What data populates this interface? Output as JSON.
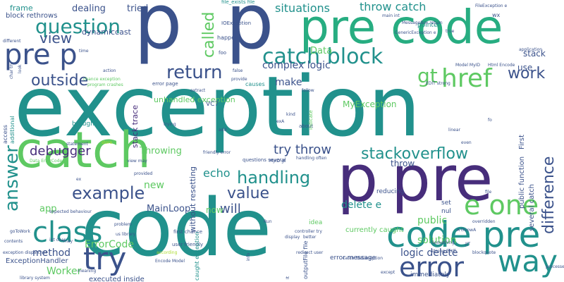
{
  "palette": {
    "navy": "#3b528b",
    "teal": "#21918c",
    "green": "#5ec962",
    "purple": "#440154",
    "indigo": "#472d7b",
    "lime": "#addc30",
    "yellow": "#fde725",
    "sea": "#27ad81"
  },
  "words": [
    {
      "text": "exception",
      "size": 118,
      "color": "#21918c"
    },
    {
      "text": "code",
      "size": 112,
      "color": "#21918c"
    },
    {
      "text": "p",
      "size": 108,
      "color": "#3b528b"
    },
    {
      "text": "p",
      "size": 108,
      "color": "#3b528b"
    },
    {
      "text": "p",
      "size": 92,
      "color": "#472d7b"
    },
    {
      "text": "pre",
      "size": 88,
      "color": "#472d7b"
    },
    {
      "text": "pre code",
      "size": 66,
      "color": "#27ad81"
    },
    {
      "text": "catch",
      "size": 70,
      "color": "#5ec962"
    },
    {
      "text": "code pre",
      "size": 50,
      "color": "#21918c"
    },
    {
      "text": "class",
      "size": 40,
      "color": "#21918c"
    },
    {
      "text": "pre p",
      "size": 40,
      "color": "#3b528b"
    },
    {
      "text": "try",
      "size": 44,
      "color": "#3b528b"
    },
    {
      "text": "way",
      "size": 42,
      "color": "#21918c"
    },
    {
      "text": "error",
      "size": 38,
      "color": "#3b528b"
    },
    {
      "text": "e one",
      "size": 38,
      "color": "#5ec962"
    },
    {
      "text": "catch block",
      "size": 30,
      "color": "#21918c"
    },
    {
      "text": "question",
      "size": 28,
      "color": "#21918c"
    },
    {
      "text": "return",
      "size": 26,
      "color": "#3b528b"
    },
    {
      "text": "outside",
      "size": 22,
      "color": "#3b528b"
    },
    {
      "text": "href",
      "size": 36,
      "color": "#5ec962"
    },
    {
      "text": "handling",
      "size": 24,
      "color": "#21918c"
    },
    {
      "text": "example",
      "size": 24,
      "color": "#3b528b"
    },
    {
      "text": "value",
      "size": 22,
      "color": "#3b528b"
    },
    {
      "text": "stackoverflow",
      "size": 22,
      "color": "#21918c"
    },
    {
      "text": "answer",
      "size": 26,
      "color": "#21918c"
    },
    {
      "text": "difference",
      "size": 22,
      "color": "#3b528b"
    },
    {
      "text": "debugger",
      "size": 18,
      "color": "#472d7b"
    },
    {
      "text": "try throw",
      "size": 18,
      "color": "#3b528b"
    },
    {
      "text": "work",
      "size": 22,
      "color": "#3b528b"
    },
    {
      "text": "called",
      "size": 22,
      "color": "#5ec962"
    },
    {
      "text": "gt",
      "size": 28,
      "color": "#5ec962"
    },
    {
      "text": "will",
      "size": 18,
      "color": "#3b528b"
    },
    {
      "text": "view",
      "size": 20,
      "color": "#3b528b"
    },
    {
      "text": "situations",
      "size": 16,
      "color": "#21918c"
    },
    {
      "text": "throw catch",
      "size": 16,
      "color": "#21918c"
    },
    {
      "text": "complex logic",
      "size": 14,
      "color": "#3b528b"
    },
    {
      "text": "logic delete",
      "size": 14,
      "color": "#3b528b"
    },
    {
      "text": "delete e",
      "size": 14,
      "color": "#21918c"
    },
    {
      "text": "solution",
      "size": 14,
      "color": "#5ec962"
    },
    {
      "text": "public",
      "size": 14,
      "color": "#5ec962"
    },
    {
      "text": "echo",
      "size": 16,
      "color": "#21918c"
    },
    {
      "text": "Worker",
      "size": 14,
      "color": "#5ec962"
    },
    {
      "text": "ErrorCode",
      "size": 14,
      "color": "#5ec962"
    },
    {
      "text": "method",
      "size": 14,
      "color": "#3b528b"
    },
    {
      "text": "new",
      "size": 14,
      "color": "#5ec962"
    },
    {
      "text": "MainLoop",
      "size": 13,
      "color": "#3b528b"
    },
    {
      "text": "Throwing",
      "size": 13,
      "color": "#5ec962"
    },
    {
      "text": "app",
      "size": 13,
      "color": "#5ec962"
    },
    {
      "text": "make",
      "size": 14,
      "color": "#3b528b"
    },
    {
      "text": "Data",
      "size": 13,
      "color": "#5ec962"
    },
    {
      "text": "dynamiccast",
      "size": 11,
      "color": "#3b528b"
    },
    {
      "text": "dealing",
      "size": 13,
      "color": "#3b528b"
    },
    {
      "text": "tried",
      "size": 13,
      "color": "#3b528b"
    },
    {
      "text": "frame",
      "size": 11,
      "color": "#21918c"
    },
    {
      "text": "block rethrows",
      "size": 10,
      "color": "#3b528b"
    },
    {
      "text": "unhandled exception",
      "size": 11,
      "color": "#5ec962"
    },
    {
      "text": "stack trace",
      "size": 11,
      "color": "#472d7b"
    },
    {
      "text": "MyException",
      "size": 12,
      "color": "#5ec962"
    },
    {
      "text": "stack",
      "size": 12,
      "color": "#3b528b"
    },
    {
      "text": "without resetting",
      "size": 11,
      "color": "#3b528b"
    },
    {
      "text": "now",
      "size": 12,
      "color": "#5ec962"
    },
    {
      "text": "throw",
      "size": 12,
      "color": "#3b528b"
    },
    {
      "text": "use",
      "size": 12,
      "color": "#3b528b"
    },
    {
      "text": "First",
      "size": 10,
      "color": "#3b528b"
    },
    {
      "text": "public function",
      "size": 10,
      "color": "#3b528b"
    },
    {
      "text": "several catch",
      "size": 10,
      "color": "#3b528b"
    },
    {
      "text": "currently caught",
      "size": 10,
      "color": "#5ec962"
    },
    {
      "text": "executed inside",
      "size": 10,
      "color": "#3b528b"
    },
    {
      "text": "ExceptionHandler",
      "size": 10,
      "color": "#3b528b"
    },
    {
      "text": "error message",
      "size": 9,
      "color": "#3b528b"
    },
    {
      "text": "immediately",
      "size": 9,
      "color": "#3b528b"
    },
    {
      "text": "file_exists file",
      "size": 7,
      "color": "#21918c"
    },
    {
      "text": "IOException",
      "size": 7,
      "color": "#3b528b"
    },
    {
      "text": "pointer",
      "size": 9,
      "color": "#21918c"
    },
    {
      "text": "reducing",
      "size": 9,
      "color": "#3b528b"
    },
    {
      "text": "VC7",
      "size": 9,
      "color": "#3b528b"
    },
    {
      "text": "foo",
      "size": 7,
      "color": "#3b528b"
    },
    {
      "text": "set",
      "size": 9,
      "color": "#3b528b"
    },
    {
      "text": "idea",
      "size": 9,
      "color": "#5ec962"
    },
    {
      "text": "nul",
      "size": 9,
      "color": "#3b528b"
    },
    {
      "text": "brought",
      "size": 9,
      "color": "#21918c"
    },
    {
      "text": "additional",
      "size": 8,
      "color": "#21918c"
    },
    {
      "text": "access",
      "size": 8,
      "color": "#3b528b"
    },
    {
      "text": "causes",
      "size": 8,
      "color": "#21918c"
    },
    {
      "text": "happens",
      "size": 8,
      "color": "#3b528b"
    },
    {
      "text": "user friendly",
      "size": 7,
      "color": "#3b528b"
    },
    {
      "text": "first chance",
      "size": 7,
      "color": "#3b528b"
    },
    {
      "text": "error page",
      "size": 7,
      "color": "#3b528b"
    },
    {
      "text": "caught exception",
      "size": 8,
      "color": "#21918c"
    },
    {
      "text": "outputFile file",
      "size": 8,
      "color": "#3b528b"
    },
    {
      "text": "questions several",
      "size": 7,
      "color": "#3b528b"
    },
    {
      "text": "controller try",
      "size": 6,
      "color": "#3b528b"
    },
    {
      "text": "redirect user",
      "size": 6,
      "color": "#3b528b"
    },
    {
      "text": "friendly error",
      "size": 6,
      "color": "#3b528b"
    },
    {
      "text": "handling often",
      "size": 6,
      "color": "#3b528b"
    },
    {
      "text": "strong EDIT",
      "size": 6,
      "color": "#3b528b"
    },
    {
      "text": "EDIT strong",
      "size": 6,
      "color": "#3b528b"
    },
    {
      "text": "Model MyID",
      "size": 6,
      "color": "#3b528b"
    },
    {
      "text": "Html Encode",
      "size": 6,
      "color": "#3b528b"
    },
    {
      "text": "MyID gt",
      "size": 6,
      "color": "#3b528b"
    },
    {
      "text": "int char",
      "size": 6,
      "color": "#3b528b"
    },
    {
      "text": "library system",
      "size": 6,
      "color": "#3b528b"
    },
    {
      "text": "exception dispatcher",
      "size": 6,
      "color": "#3b528b"
    },
    {
      "text": "expected behaviour",
      "size": 6,
      "color": "#3b528b"
    },
    {
      "text": "catch fileException",
      "size": 6,
      "color": "#3b528b"
    },
    {
      "text": "GenericException e",
      "size": 6,
      "color": "#3b528b"
    },
    {
      "text": "main int",
      "size": 6,
      "color": "#3b528b"
    },
    {
      "text": "MessageBox return",
      "size": 6,
      "color": "#3b528b"
    },
    {
      "text": "FileException e",
      "size": 6,
      "color": "#3b528b"
    },
    {
      "text": "wx",
      "size": 8,
      "color": "#3b528b"
    },
    {
      "text": "true",
      "size": 6,
      "color": "#3b528b"
    },
    {
      "text": "application",
      "size": 6,
      "color": "#3b528b"
    },
    {
      "text": "blockquote",
      "size": 6,
      "color": "#3b528b"
    },
    {
      "text": "overridden",
      "size": 6,
      "color": "#3b528b"
    },
    {
      "text": "Something",
      "size": 6,
      "color": "#3b528b"
    },
    {
      "text": "linear",
      "size": 6,
      "color": "#3b528b"
    },
    {
      "text": "even",
      "size": 6,
      "color": "#3b528b"
    },
    {
      "text": "fo",
      "size": 6,
      "color": "#3b528b"
    },
    {
      "text": "follow",
      "size": 6,
      "color": "#3b528b"
    },
    {
      "text": "kind",
      "size": 6,
      "color": "#3b528b"
    },
    {
      "text": "indicate",
      "size": 7,
      "color": "#5ec962"
    },
    {
      "text": "about",
      "size": 7,
      "color": "#3b528b"
    },
    {
      "text": "ex",
      "size": 6,
      "color": "#3b528b"
    },
    {
      "text": "exA",
      "size": 6,
      "color": "#3b528b"
    },
    {
      "text": "add",
      "size": 6,
      "color": "#3b528b"
    },
    {
      "text": "trying",
      "size": 6,
      "color": "#3b528b"
    },
    {
      "text": "statement",
      "size": 6,
      "color": "#3b528b"
    },
    {
      "text": "store",
      "size": 6,
      "color": "#addc30"
    },
    {
      "text": "provided",
      "size": 6,
      "color": "#3b528b"
    },
    {
      "text": "view may",
      "size": 6,
      "color": "#3b528b"
    },
    {
      "text": "Data ErrorCode",
      "size": 6,
      "color": "#5ec962"
    },
    {
      "text": "chance exception",
      "size": 6,
      "color": "#5ec962"
    },
    {
      "text": "program crashes",
      "size": 6,
      "color": "#5ec962"
    },
    {
      "text": "action",
      "size": 6,
      "color": "#3b528b"
    },
    {
      "text": "time",
      "size": 6,
      "color": "#3b528b"
    },
    {
      "text": "look",
      "size": 6,
      "color": "#3b528b"
    },
    {
      "text": "char try",
      "size": 6,
      "color": "#3b528b"
    },
    {
      "text": "different",
      "size": 6,
      "color": "#3b528b"
    },
    {
      "text": "us library",
      "size": 6,
      "color": "#3b528b"
    },
    {
      "text": "problem",
      "size": 6,
      "color": "#3b528b"
    },
    {
      "text": "according",
      "size": 6,
      "color": "#3b528b"
    },
    {
      "text": "Encode Model",
      "size": 6,
      "color": "#addc30"
    },
    {
      "text": "meaning",
      "size": 6,
      "color": "#3b528b"
    },
    {
      "text": "goToWork",
      "size": 6,
      "color": "#3b528b"
    },
    {
      "text": "contents",
      "size": 6,
      "color": "#3b528b"
    },
    {
      "text": "may",
      "size": 6,
      "color": "#3b528b"
    },
    {
      "text": "Run",
      "size": 6,
      "color": "#3b528b"
    },
    {
      "text": "better",
      "size": 6,
      "color": "#3b528b"
    },
    {
      "text": "display",
      "size": 6,
      "color": "#3b528b"
    },
    {
      "text": "except",
      "size": 6,
      "color": "#3b528b"
    },
    {
      "text": "processed",
      "size": 6,
      "color": "#3b528b"
    },
    {
      "text": "A throwA",
      "size": 6,
      "color": "#3b528b"
    },
    {
      "text": "JIT",
      "size": 6,
      "color": "#3b528b"
    },
    {
      "text": "It",
      "size": 6,
      "color": "#3b528b"
    },
    {
      "text": "info",
      "size": 6,
      "color": "#3b528b"
    },
    {
      "text": "false",
      "size": 6,
      "color": "#3b528b"
    },
    {
      "text": "provide",
      "size": 6,
      "color": "#3b528b"
    },
    {
      "text": "extract",
      "size": 6,
      "color": "#3b528b"
    },
    {
      "text": "file",
      "size": 6,
      "color": "#3b528b"
    },
    {
      "text": "date",
      "size": 6,
      "color": "#3b528b"
    }
  ]
}
